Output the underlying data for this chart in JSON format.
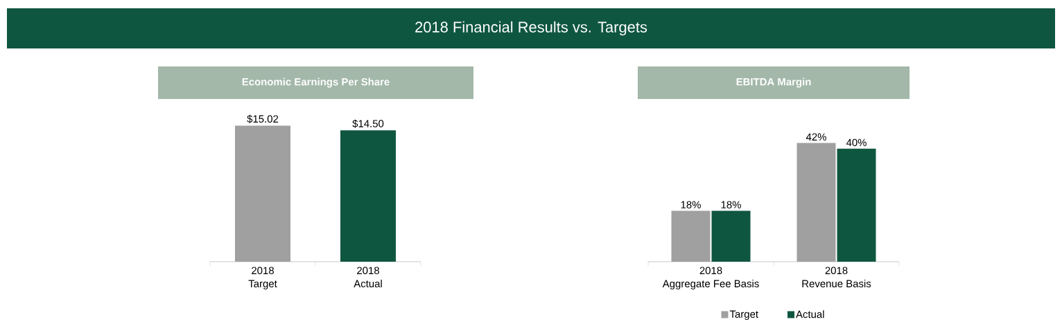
{
  "chart_data": [
    {
      "type": "other",
      "title": "2018 Financial Results vs. Targets"
    },
    {
      "type": "bar",
      "title": "Economic Earnings Per Share",
      "categories": [
        "2018\nTarget",
        "2018\nActual"
      ],
      "values": [
        15.02,
        14.5
      ],
      "colors": [
        "#a0a0a0",
        "#0f5640"
      ],
      "value_labels": [
        "$15.02",
        "$14.50"
      ],
      "legend": false
    },
    {
      "type": "bar",
      "title": "EBITDA Margin",
      "categories": [
        "2018\nAggregate Fee Basis",
        "2018\nRevenue Basis"
      ],
      "series": [
        {
          "name": "Target",
          "color": "#a0a0a0",
          "values": [
            18,
            42
          ],
          "value_labels": [
            "18%",
            "42%"
          ]
        },
        {
          "name": "Actual",
          "color": "#0f5640",
          "values": [
            18,
            40
          ],
          "value_labels": [
            "18%",
            "40%"
          ]
        }
      ],
      "legend": "bottom"
    }
  ]
}
